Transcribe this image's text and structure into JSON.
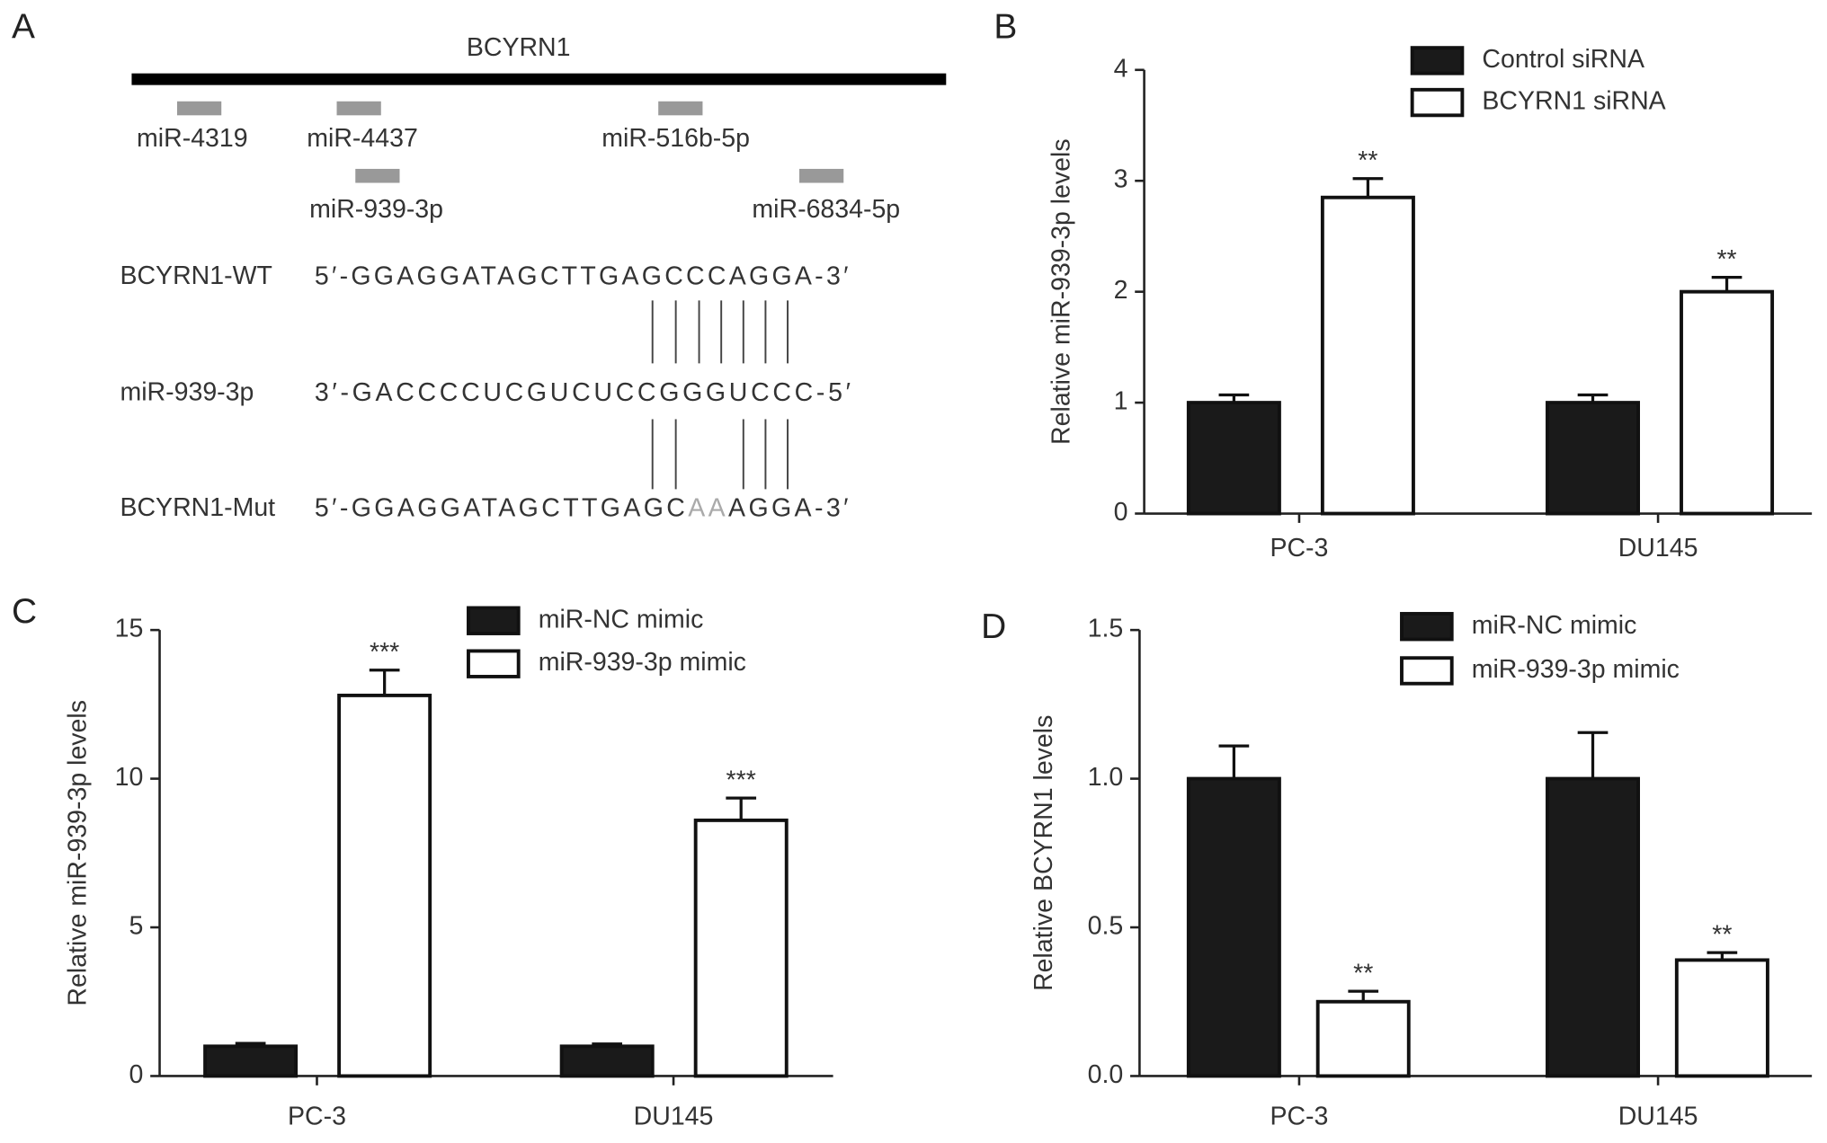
{
  "diagram": {
    "panel_label": "A",
    "title": "BCYRN1",
    "mirnas": [
      "miR-4319",
      "miR-4437",
      "miR-516b-5p",
      "miR-939-3p",
      "miR-6834-5p"
    ],
    "rows": [
      {
        "label": "BCYRN1-WT",
        "sequence": [
          "5′-GGAGGATAGCTTGAGCCCAGGA-3′"
        ]
      },
      {
        "label": "miR-939-3p",
        "sequence": [
          "3′-GACCCCUCGUCUCCGGGUCCC-5′"
        ]
      },
      {
        "label": "BCYRN1-Mut",
        "sequence": [
          "5′-GGAGGATAGCTTGAGC",
          "AA",
          "AGGA-3′"
        ]
      }
    ]
  },
  "chart_data": [
    {
      "type": "bar",
      "panel_label": "B",
      "y_label": "Relative miR-939-3p levels",
      "categories": [
        "PC-3",
        "DU145"
      ],
      "series": [
        {
          "name": "Control siRNA",
          "color": "#1a1a1a",
          "values": [
            1.0,
            1.0
          ],
          "errors": [
            0.07,
            0.07
          ]
        },
        {
          "name": "BCYRN1 siRNA",
          "color": "#ffffff",
          "values": [
            2.85,
            2.0
          ],
          "errors": [
            0.17,
            0.13
          ],
          "significance": [
            "**",
            "**"
          ]
        }
      ],
      "ylim": [
        0,
        4
      ],
      "yticks": [
        0,
        1,
        2,
        3,
        4
      ],
      "legend": "top"
    },
    {
      "type": "bar",
      "panel_label": "C",
      "y_label": "Relative miR-939-3p levels",
      "categories": [
        "PC-3",
        "DU145"
      ],
      "series": [
        {
          "name": "miR-NC mimic",
          "color": "#1a1a1a",
          "values": [
            1.0,
            1.0
          ],
          "errors": [
            0.1,
            0.08
          ]
        },
        {
          "name": "miR-939-3p mimic",
          "color": "#ffffff",
          "values": [
            12.8,
            8.6
          ],
          "errors": [
            0.85,
            0.75
          ],
          "significance": [
            "***",
            "***"
          ]
        }
      ],
      "ylim": [
        0,
        15
      ],
      "yticks": [
        0,
        5,
        10,
        15
      ],
      "legend": "top"
    },
    {
      "type": "bar",
      "panel_label": "D",
      "y_label": "Relative BCYRN1 levels",
      "categories": [
        "PC-3",
        "DU145"
      ],
      "series": [
        {
          "name": "miR-NC mimic",
          "color": "#1a1a1a",
          "values": [
            1.0,
            1.0
          ],
          "errors": [
            0.11,
            0.155
          ]
        },
        {
          "name": "miR-939-3p mimic",
          "color": "#ffffff",
          "values": [
            0.25,
            0.39
          ],
          "errors": [
            0.035,
            0.025
          ],
          "significance": [
            "**",
            "**"
          ]
        }
      ],
      "ylim": [
        0,
        1.5
      ],
      "yticks": [
        {
          "value": 0,
          "label": "0.0"
        },
        0.5,
        {
          "value": 1,
          "label": "1.0"
        },
        1.5
      ],
      "legend": "top"
    }
  ]
}
